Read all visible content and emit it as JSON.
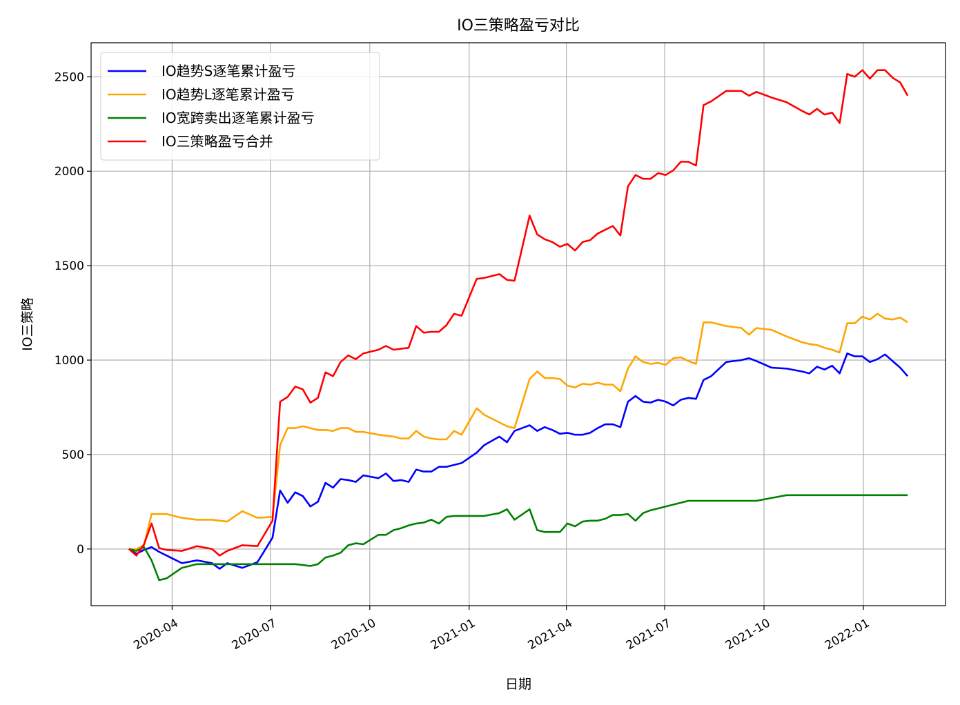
{
  "chart_data": {
    "type": "line",
    "title": "IO三策略盈亏对比",
    "xlabel": "日期",
    "ylabel": "IO三策略",
    "legend": "upper left",
    "grid": true,
    "xlim": [
      "2020-01-17",
      "2022-03-18"
    ],
    "ylim": [
      -300,
      2680
    ],
    "yticks": [
      0,
      500,
      1000,
      1500,
      2000,
      2500
    ],
    "xticks": [
      {
        "value": "2020-04-01",
        "label": "2020-04"
      },
      {
        "value": "2020-07-01",
        "label": "2020-07"
      },
      {
        "value": "2020-10-01",
        "label": "2020-10"
      },
      {
        "value": "2021-01-01",
        "label": "2021-01"
      },
      {
        "value": "2021-04-01",
        "label": "2021-04"
      },
      {
        "value": "2021-07-01",
        "label": "2021-07"
      },
      {
        "value": "2021-10-01",
        "label": "2021-10"
      },
      {
        "value": "2022-01-01",
        "label": "2022-01"
      }
    ],
    "x": [
      "2020-02-21",
      "2020-02-28",
      "2020-03-06",
      "2020-03-13",
      "2020-03-20",
      "2020-03-27",
      "2020-04-10",
      "2020-04-24",
      "2020-05-08",
      "2020-05-15",
      "2020-05-22",
      "2020-06-05",
      "2020-06-19",
      "2020-07-03",
      "2020-07-10",
      "2020-07-17",
      "2020-07-24",
      "2020-07-31",
      "2020-08-07",
      "2020-08-14",
      "2020-08-21",
      "2020-08-28",
      "2020-09-04",
      "2020-09-11",
      "2020-09-18",
      "2020-09-25",
      "2020-10-09",
      "2020-10-16",
      "2020-10-23",
      "2020-10-30",
      "2020-11-06",
      "2020-11-13",
      "2020-11-20",
      "2020-11-27",
      "2020-12-04",
      "2020-12-11",
      "2020-12-18",
      "2020-12-25",
      "2021-01-08",
      "2021-01-15",
      "2021-01-29",
      "2021-02-05",
      "2021-02-12",
      "2021-02-26",
      "2021-03-05",
      "2021-03-12",
      "2021-03-19",
      "2021-03-26",
      "2021-04-02",
      "2021-04-09",
      "2021-04-16",
      "2021-04-23",
      "2021-04-30",
      "2021-05-07",
      "2021-05-14",
      "2021-05-21",
      "2021-05-28",
      "2021-06-04",
      "2021-06-11",
      "2021-06-18",
      "2021-06-25",
      "2021-07-02",
      "2021-07-09",
      "2021-07-16",
      "2021-07-23",
      "2021-07-30",
      "2021-08-06",
      "2021-08-13",
      "2021-08-27",
      "2021-09-10",
      "2021-09-17",
      "2021-09-24",
      "2021-10-08",
      "2021-10-22",
      "2021-11-05",
      "2021-11-12",
      "2021-11-19",
      "2021-11-26",
      "2021-12-03",
      "2021-12-10",
      "2021-12-17",
      "2021-12-24",
      "2021-12-31",
      "2022-01-07",
      "2022-01-14",
      "2022-01-21",
      "2022-01-28",
      "2022-02-04",
      "2022-02-11"
    ],
    "series": [
      {
        "name": "IO趋势S逐笔累计盈亏",
        "color": "#0000ff",
        "values": [
          0,
          -25,
          -5,
          10,
          -15,
          -35,
          -75,
          -60,
          -75,
          -105,
          -75,
          -100,
          -70,
          60,
          310,
          245,
          300,
          280,
          225,
          250,
          350,
          325,
          370,
          365,
          355,
          390,
          375,
          400,
          360,
          365,
          355,
          420,
          410,
          410,
          435,
          435,
          445,
          455,
          510,
          550,
          595,
          565,
          625,
          655,
          625,
          645,
          630,
          610,
          615,
          605,
          605,
          615,
          640,
          660,
          660,
          645,
          780,
          810,
          780,
          775,
          790,
          780,
          760,
          790,
          800,
          795,
          895,
          915,
          990,
          1000,
          1010,
          995,
          960,
          955,
          940,
          930,
          965,
          950,
          970,
          930,
          1035,
          1020,
          1020,
          990,
          1005,
          1030,
          995,
          960,
          915
        ]
      },
      {
        "name": "IO趋势L逐笔累计盈亏",
        "color": "#ffa500",
        "values": [
          0,
          0,
          20,
          185,
          185,
          185,
          165,
          155,
          155,
          150,
          145,
          200,
          165,
          170,
          550,
          640,
          640,
          650,
          640,
          630,
          630,
          625,
          640,
          640,
          620,
          620,
          605,
          600,
          595,
          585,
          585,
          625,
          595,
          585,
          580,
          580,
          625,
          605,
          745,
          710,
          670,
          650,
          640,
          900,
          940,
          905,
          905,
          900,
          865,
          855,
          875,
          870,
          880,
          870,
          870,
          835,
          955,
          1020,
          990,
          980,
          985,
          975,
          1010,
          1015,
          995,
          980,
          1200,
          1200,
          1180,
          1170,
          1135,
          1170,
          1160,
          1125,
          1095,
          1085,
          1080,
          1065,
          1055,
          1040,
          1195,
          1195,
          1230,
          1215,
          1245,
          1220,
          1215,
          1225,
          1200
        ]
      },
      {
        "name": "IO宽跨卖出逐笔累计盈亏",
        "color": "#008000",
        "values": [
          0,
          -10,
          10,
          -60,
          -165,
          -155,
          -100,
          -80,
          -80,
          -80,
          -80,
          -80,
          -80,
          -80,
          -80,
          -80,
          -80,
          -85,
          -90,
          -80,
          -45,
          -35,
          -20,
          20,
          30,
          25,
          75,
          75,
          100,
          110,
          125,
          135,
          140,
          155,
          135,
          170,
          175,
          175,
          175,
          175,
          190,
          210,
          155,
          210,
          100,
          90,
          90,
          90,
          135,
          120,
          145,
          150,
          150,
          160,
          180,
          180,
          185,
          150,
          190,
          205,
          215,
          225,
          235,
          245,
          255,
          255,
          255,
          255,
          255,
          255,
          255,
          255,
          270,
          285,
          285,
          285,
          285,
          285,
          285,
          285,
          285,
          285,
          285,
          285,
          285,
          285,
          285,
          285,
          285
        ]
      },
      {
        "name": "IO三策略盈亏合并",
        "color": "#ff0000",
        "values": [
          0,
          -35,
          25,
          135,
          5,
          -5,
          -10,
          15,
          0,
          -35,
          -10,
          20,
          15,
          150,
          780,
          805,
          860,
          845,
          775,
          800,
          935,
          915,
          990,
          1025,
          1005,
          1035,
          1055,
          1075,
          1055,
          1060,
          1065,
          1180,
          1145,
          1150,
          1150,
          1185,
          1245,
          1235,
          1430,
          1435,
          1455,
          1425,
          1420,
          1765,
          1665,
          1640,
          1625,
          1600,
          1615,
          1580,
          1625,
          1635,
          1670,
          1690,
          1710,
          1660,
          1920,
          1980,
          1960,
          1960,
          1990,
          1980,
          2005,
          2050,
          2050,
          2030,
          2350,
          2370,
          2425,
          2425,
          2400,
          2420,
          2390,
          2365,
          2320,
          2300,
          2330,
          2300,
          2310,
          2255,
          2515,
          2500,
          2535,
          2490,
          2535,
          2535,
          2495,
          2470,
          2400
        ]
      }
    ]
  }
}
